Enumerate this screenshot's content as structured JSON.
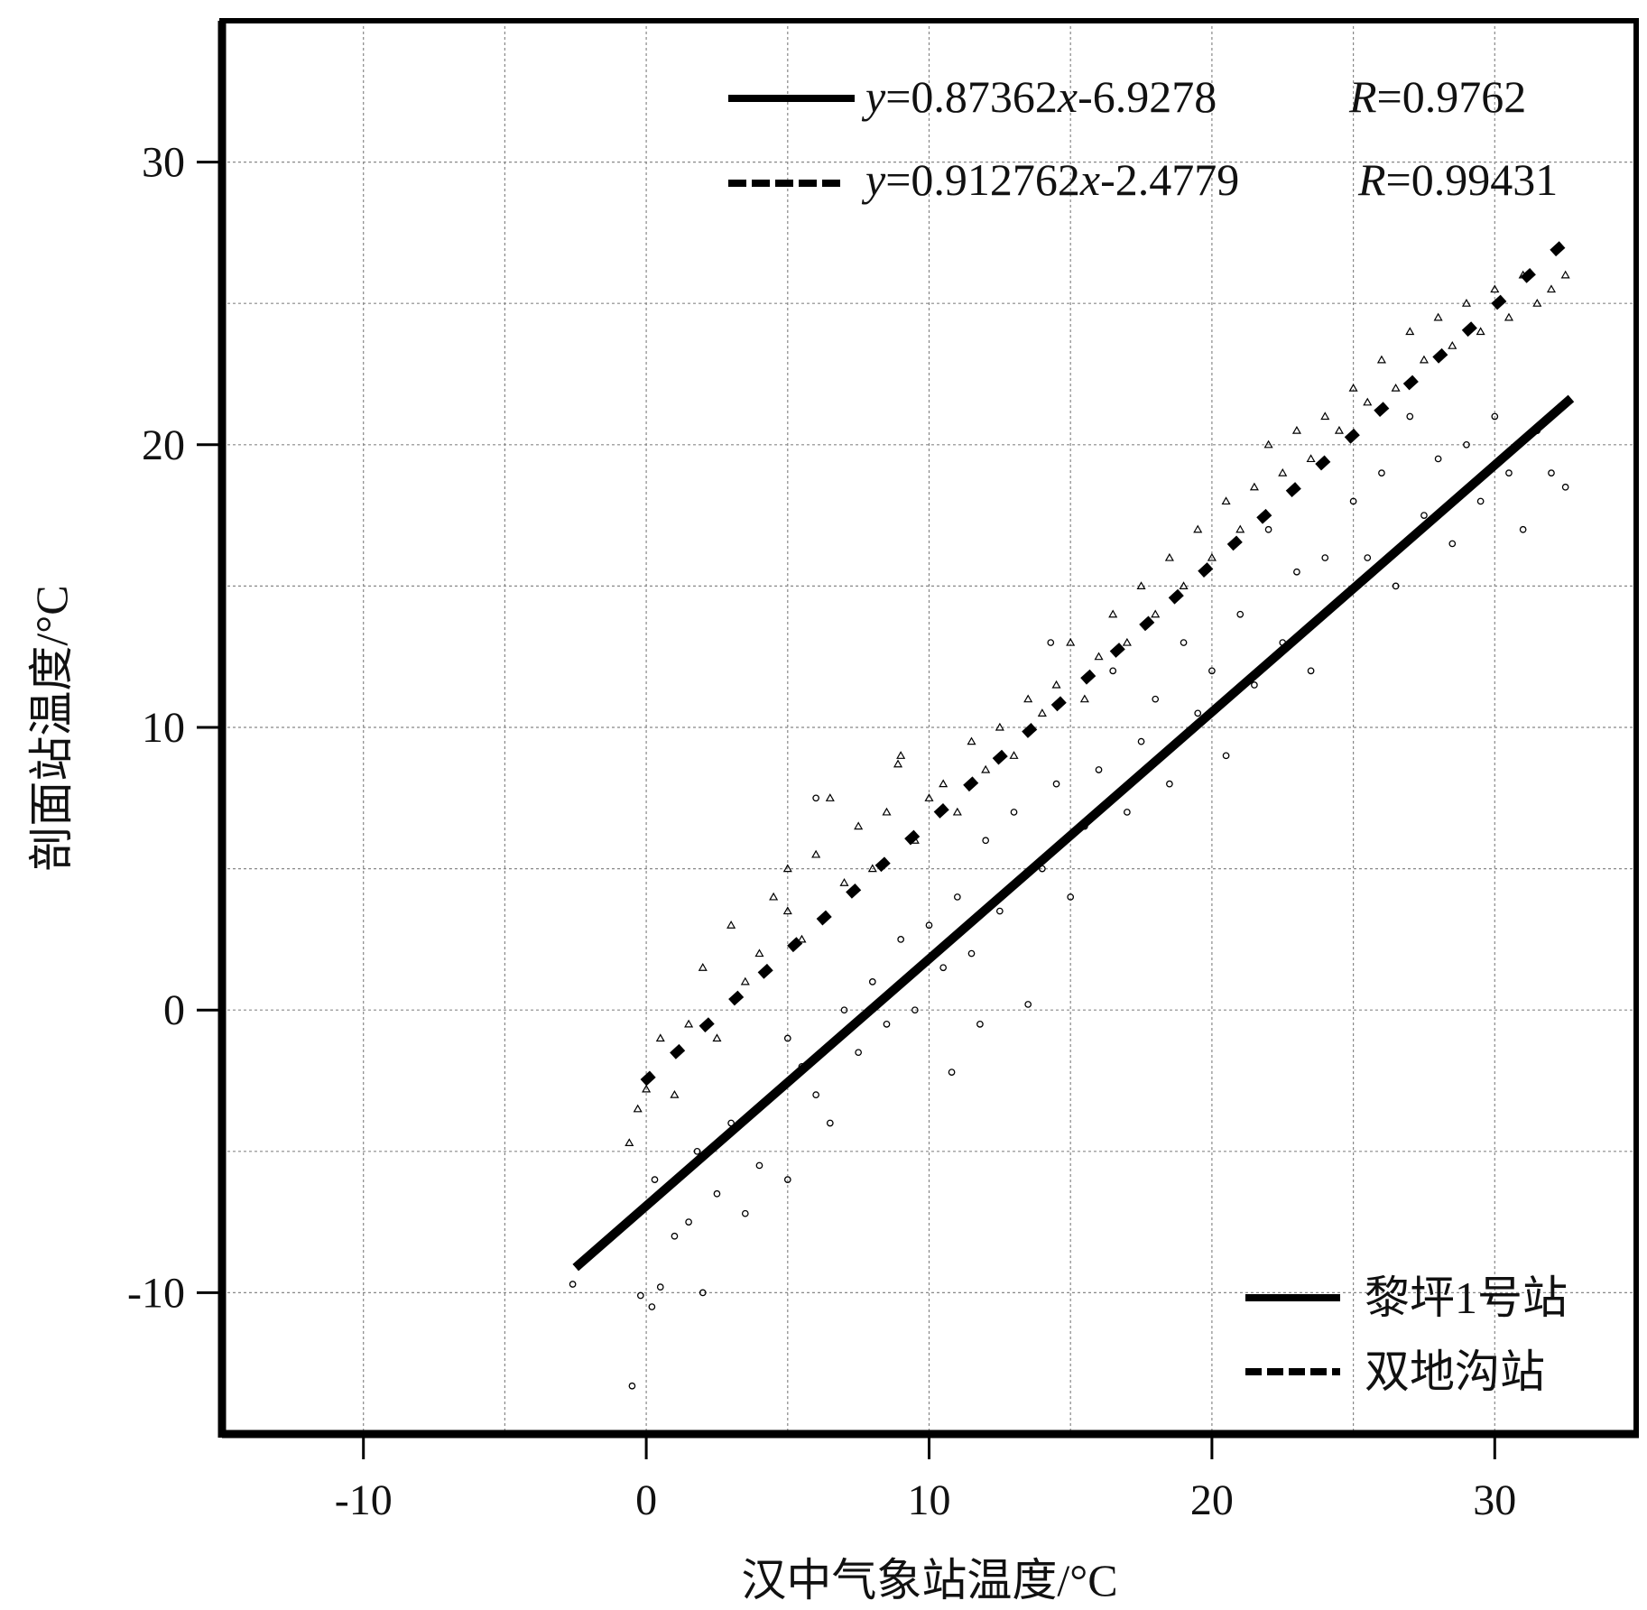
{
  "chart_data": {
    "type": "scatter",
    "xlabel": "汉中气象站温度/°C",
    "ylabel": "剖面站温度/°C",
    "xlim": [
      -15,
      35
    ],
    "ylim": [
      -15,
      35
    ],
    "x_ticks": [
      -10,
      0,
      10,
      20,
      30
    ],
    "y_ticks": [
      -10,
      0,
      10,
      20,
      30
    ],
    "x_tick_labels": [
      "-10",
      "0",
      "10",
      "20",
      "30"
    ],
    "y_tick_labels": [
      "-10",
      "0",
      "10",
      "20",
      "30"
    ],
    "grid": true,
    "grid_step": 5,
    "legend_placement": "bottom-right",
    "equation_placement": "top-right",
    "colors": {
      "marks": "#000000",
      "grid": "#888888"
    },
    "series": [
      {
        "name": "黎坪1号站",
        "marker": "circle",
        "line_style": "solid",
        "fit": {
          "slope": 0.87362,
          "intercept": -6.9278,
          "x_range": [
            -2.5,
            32.7
          ]
        },
        "equation_text": {
          "y": "y",
          "body": "=0.87362",
          "x": "x",
          "tail": "-6.9278",
          "R": "R",
          "R_value": "=0.9762"
        },
        "points": [
          [
            -2.6,
            -9.7
          ],
          [
            -0.5,
            -13.3
          ],
          [
            -0.2,
            -10.1
          ],
          [
            0.2,
            -10.5
          ],
          [
            0.5,
            -9.8
          ],
          [
            0.3,
            -6
          ],
          [
            1,
            -8
          ],
          [
            1.5,
            -7.5
          ],
          [
            2,
            -10
          ],
          [
            1.8,
            -5
          ],
          [
            2.5,
            -6.5
          ],
          [
            3,
            -4
          ],
          [
            3.5,
            -7.2
          ],
          [
            4,
            -5.5
          ],
          [
            4.5,
            -3
          ],
          [
            5,
            -6
          ],
          [
            5.5,
            -2
          ],
          [
            5,
            -1
          ],
          [
            6,
            -3
          ],
          [
            6.5,
            -4
          ],
          [
            7,
            0
          ],
          [
            7.5,
            -1.5
          ],
          [
            8,
            1
          ],
          [
            8.5,
            -0.5
          ],
          [
            9,
            2.5
          ],
          [
            9.5,
            0
          ],
          [
            10,
            3
          ],
          [
            10.5,
            1.5
          ],
          [
            11,
            4
          ],
          [
            11.5,
            2
          ],
          [
            12,
            6
          ],
          [
            12.5,
            3.5
          ],
          [
            13,
            7
          ],
          [
            13.5,
            0.2
          ],
          [
            14,
            5
          ],
          [
            14.5,
            8
          ],
          [
            15,
            4
          ],
          [
            15.5,
            6.5
          ],
          [
            16,
            8.5
          ],
          [
            16.5,
            12
          ],
          [
            17,
            7
          ],
          [
            17.5,
            9.5
          ],
          [
            18,
            11
          ],
          [
            18.5,
            8
          ],
          [
            19,
            13
          ],
          [
            19.5,
            10.5
          ],
          [
            20,
            12
          ],
          [
            20.5,
            9
          ],
          [
            21,
            14
          ],
          [
            21.5,
            11.5
          ],
          [
            22,
            17
          ],
          [
            22.5,
            13
          ],
          [
            23,
            15.5
          ],
          [
            23.5,
            12
          ],
          [
            24,
            16
          ],
          [
            24.5,
            14.5
          ],
          [
            25,
            18
          ],
          [
            25.5,
            16
          ],
          [
            26,
            19
          ],
          [
            26.5,
            15
          ],
          [
            27,
            21
          ],
          [
            27.5,
            17.5
          ],
          [
            28,
            19.5
          ],
          [
            28.5,
            16.5
          ],
          [
            29,
            20
          ],
          [
            29.5,
            18
          ],
          [
            30,
            21
          ],
          [
            30.5,
            19
          ],
          [
            31,
            17
          ],
          [
            31.5,
            20.5
          ],
          [
            32,
            19
          ],
          [
            32.5,
            18.5
          ],
          [
            10.8,
            -2.2
          ],
          [
            11.8,
            -0.5
          ],
          [
            6,
            7.5
          ],
          [
            14.3,
            13
          ]
        ]
      },
      {
        "name": "双地沟站",
        "marker": "triangle",
        "line_style": "dashed",
        "fit": {
          "slope": 0.912762,
          "intercept": -2.4779,
          "x_range": [
            -0.1,
            32.7
          ]
        },
        "equation_text": {
          "y": "y",
          "body": "=0.912762",
          "x": "x",
          "tail": "-2.4779",
          "R": "R",
          "R_value": "=0.99431"
        },
        "points": [
          [
            -0.6,
            -4.7
          ],
          [
            -0.3,
            -3.5
          ],
          [
            0,
            -2.8
          ],
          [
            0.5,
            -1
          ],
          [
            1,
            -3
          ],
          [
            1.5,
            -0.5
          ],
          [
            2,
            1.5
          ],
          [
            2.5,
            -1
          ],
          [
            3,
            3
          ],
          [
            3.5,
            1
          ],
          [
            4,
            2
          ],
          [
            4.5,
            4
          ],
          [
            5,
            3.5
          ],
          [
            5,
            5
          ],
          [
            5.5,
            2.5
          ],
          [
            6,
            5.5
          ],
          [
            6.5,
            7.5
          ],
          [
            7,
            4.5
          ],
          [
            7.5,
            6.5
          ],
          [
            8,
            5
          ],
          [
            8.5,
            7
          ],
          [
            9,
            9
          ],
          [
            9.5,
            6
          ],
          [
            10,
            7.5
          ],
          [
            10.5,
            8
          ],
          [
            11,
            7
          ],
          [
            11.5,
            9.5
          ],
          [
            12,
            8.5
          ],
          [
            12.5,
            10
          ],
          [
            13,
            9
          ],
          [
            13.5,
            11
          ],
          [
            14,
            10.5
          ],
          [
            14.5,
            11.5
          ],
          [
            15,
            13
          ],
          [
            15.5,
            11
          ],
          [
            16,
            12.5
          ],
          [
            16.5,
            14
          ],
          [
            17,
            13
          ],
          [
            17.5,
            15
          ],
          [
            18,
            14
          ],
          [
            18.5,
            16
          ],
          [
            19,
            15
          ],
          [
            19.5,
            17
          ],
          [
            20,
            16
          ],
          [
            20.5,
            18
          ],
          [
            21,
            17
          ],
          [
            21.5,
            18.5
          ],
          [
            22,
            20
          ],
          [
            22.5,
            19
          ],
          [
            23,
            20.5
          ],
          [
            23.5,
            19.5
          ],
          [
            24,
            21
          ],
          [
            24.5,
            20.5
          ],
          [
            25,
            22
          ],
          [
            25.5,
            21.5
          ],
          [
            26,
            23
          ],
          [
            26.5,
            22
          ],
          [
            27,
            24
          ],
          [
            27.5,
            23
          ],
          [
            28,
            24.5
          ],
          [
            28.5,
            23.5
          ],
          [
            29,
            25
          ],
          [
            29.5,
            24
          ],
          [
            30,
            25.5
          ],
          [
            30.5,
            24.5
          ],
          [
            31,
            26
          ],
          [
            31.5,
            25
          ],
          [
            32,
            25.5
          ],
          [
            32.5,
            26
          ],
          [
            8.9,
            8.7
          ]
        ]
      }
    ]
  }
}
